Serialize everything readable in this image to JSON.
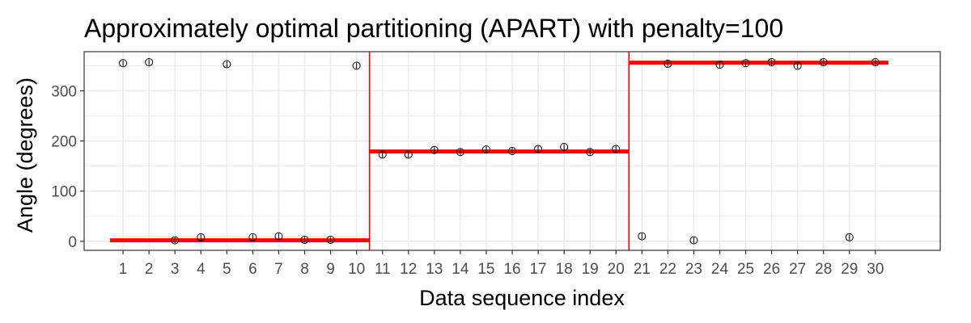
{
  "chart_data": {
    "type": "scatter",
    "title": "Approximately optimal partitioning (APART) with penalty=100",
    "xlabel": "Data sequence index",
    "ylabel": "Angle (degrees)",
    "xlim": [
      -0.5,
      32.5
    ],
    "ylim": [
      -18,
      378
    ],
    "x_ticks": [
      1,
      2,
      3,
      4,
      5,
      6,
      7,
      8,
      9,
      10,
      11,
      12,
      13,
      14,
      15,
      16,
      17,
      18,
      19,
      20,
      21,
      22,
      23,
      24,
      25,
      26,
      27,
      28,
      29,
      30
    ],
    "y_ticks": [
      0,
      100,
      200,
      300
    ],
    "grid": true,
    "points": {
      "x": [
        1,
        2,
        3,
        4,
        5,
        6,
        7,
        8,
        9,
        10,
        11,
        12,
        13,
        14,
        15,
        16,
        17,
        18,
        19,
        20,
        21,
        22,
        23,
        24,
        25,
        26,
        27,
        28,
        29,
        30
      ],
      "y": [
        355,
        357,
        2,
        8,
        353,
        8,
        10,
        3,
        3,
        350,
        173,
        173,
        182,
        178,
        183,
        180,
        184,
        188,
        178,
        184,
        10,
        354,
        2,
        352,
        355,
        357,
        350,
        357,
        8,
        357
      ]
    },
    "segments": [
      {
        "x_start": 0.5,
        "x_end": 10.5,
        "y": 2
      },
      {
        "x_start": 10.5,
        "x_end": 20.5,
        "y": 179
      },
      {
        "x_start": 20.5,
        "x_end": 30.5,
        "y": 356
      }
    ],
    "changepoints": [
      10.5,
      20.5
    ],
    "colors": {
      "segment": "#ff0000",
      "changepoint": "#ff0000",
      "point": "#000000",
      "grid": "#ebebeb",
      "panel_border": "#333333"
    }
  }
}
